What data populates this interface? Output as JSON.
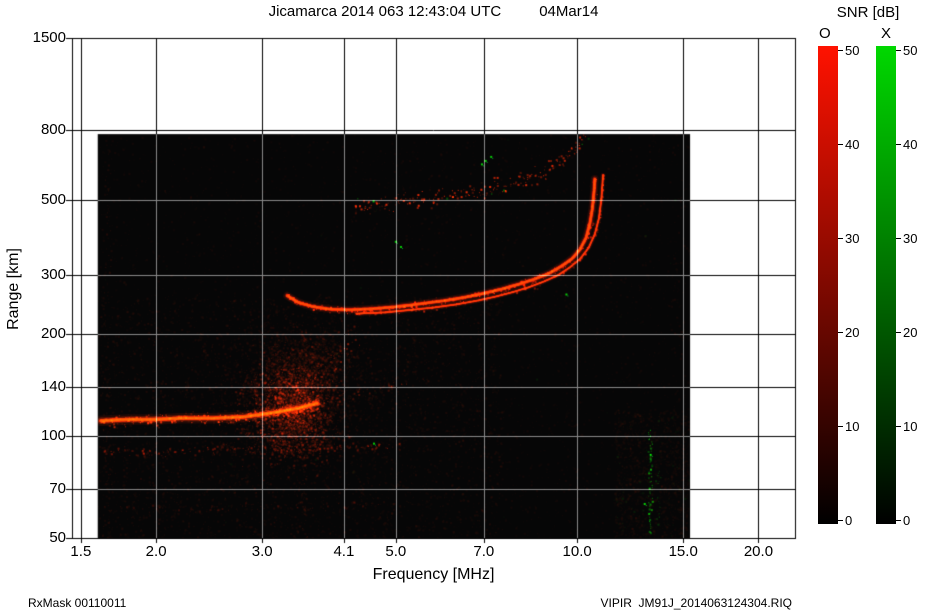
{
  "footer": {
    "left": "RxMask 00110011",
    "right": "VIPIR  JM91J_2014063124304.RIQ"
  },
  "colorbar": {
    "title": "SNR [dB]",
    "min": 0,
    "max": 50,
    "ticks": [
      0,
      10,
      20,
      30,
      40,
      50
    ],
    "bars": [
      {
        "label": "O",
        "top_color": "#ff1200",
        "bottom_color": "#000000"
      },
      {
        "label": "X",
        "top_color": "#00d800",
        "bottom_color": "#000000"
      }
    ]
  },
  "chart_data": {
    "type": "heatmap",
    "title": "Jicamarca 2014 063 12:43:04 UTC",
    "date_label": "04Mar14",
    "xlabel": "Frequency [MHz]",
    "ylabel": "Range [km]",
    "xscale": "log",
    "yscale": "log",
    "xlim": [
      1.45,
      23
    ],
    "ylim": [
      50,
      1500
    ],
    "xticks": [
      "1.5",
      "2.0",
      "3.0",
      "4.1",
      "5.0",
      "7.0",
      "10.0",
      "15.0",
      "20.0"
    ],
    "yticks": [
      "1500",
      "800",
      "500",
      "300",
      "200",
      "140",
      "100",
      "70",
      "50"
    ],
    "grid": true,
    "background": "#060606",
    "grid_color_light": "#000000",
    "grid_color_dark": "#8a8a8a",
    "accent_red": "#ff2000",
    "accent_green": "#00c800",
    "data_region": {
      "fmin": 1.6,
      "fmax": 15.4,
      "rmin": 50,
      "rmax": 780
    },
    "traces": [
      {
        "name": "E-region-echo",
        "style": "line",
        "color": "#ff2a00",
        "width": 3.5,
        "alpha": 0.9,
        "fuzz_x": 3,
        "fuzz_y": 4.5,
        "fuzz_density": 2.0,
        "points": [
          [
            1.62,
            111
          ],
          [
            1.8,
            112
          ],
          [
            2.0,
            112
          ],
          [
            2.2,
            113
          ],
          [
            2.5,
            113
          ],
          [
            2.8,
            114
          ],
          [
            3.0,
            116
          ],
          [
            3.2,
            118
          ],
          [
            3.45,
            121
          ],
          [
            3.7,
            125
          ]
        ]
      },
      {
        "name": "E-region-extension",
        "style": "speckle",
        "color": "#d02000",
        "alpha": 0.4,
        "fuzz_x": 4,
        "fuzz_y": 4,
        "density": 0.8,
        "points": [
          [
            3.7,
            126
          ],
          [
            4.1,
            131
          ],
          [
            4.5,
            137
          ],
          [
            4.9,
            142
          ],
          [
            5.2,
            146
          ]
        ]
      },
      {
        "name": "Es-diffuse-rise",
        "style": "speckle",
        "color": "#e02000",
        "alpha": 0.5,
        "fuzz_x": 7,
        "fuzz_y": 9,
        "density": 1.5,
        "points": [
          [
            3.0,
            112
          ],
          [
            3.3,
            125
          ],
          [
            3.6,
            142
          ],
          [
            3.85,
            158
          ],
          [
            4.05,
            172
          ],
          [
            4.2,
            186
          ],
          [
            4.3,
            196
          ]
        ]
      },
      {
        "name": "low-echo-90km",
        "style": "speckle",
        "color": "#c81800",
        "alpha": 0.5,
        "fuzz_x": 5,
        "fuzz_y": 3.5,
        "density": 1.2,
        "points": [
          [
            1.62,
            90
          ],
          [
            2.0,
            90
          ],
          [
            2.4,
            91
          ],
          [
            2.9,
            92
          ],
          [
            3.4,
            92
          ],
          [
            3.9,
            93
          ],
          [
            4.4,
            93
          ],
          [
            5.0,
            94
          ]
        ]
      },
      {
        "name": "low-echo-60km",
        "style": "speckle",
        "color": "#a01200",
        "alpha": 0.3,
        "fuzz_x": 6,
        "fuzz_y": 3,
        "density": 0.6,
        "points": [
          [
            1.7,
            61
          ],
          [
            2.3,
            61
          ],
          [
            3.0,
            62
          ],
          [
            3.8,
            62
          ],
          [
            4.6,
            63
          ]
        ]
      },
      {
        "name": "F-trace-O",
        "style": "line",
        "color": "#ff2000",
        "width": 2.6,
        "alpha": 0.95,
        "fuzz_x": 2,
        "fuzz_y": 2.5,
        "fuzz_density": 1.0,
        "points": [
          [
            3.3,
            260
          ],
          [
            3.45,
            248
          ],
          [
            3.65,
            241
          ],
          [
            3.9,
            237
          ],
          [
            4.2,
            236
          ],
          [
            4.6,
            238
          ],
          [
            5.0,
            241
          ],
          [
            5.5,
            246
          ],
          [
            6.0,
            251
          ],
          [
            6.5,
            257
          ],
          [
            7.0,
            264
          ],
          [
            7.5,
            272
          ],
          [
            8.0,
            281
          ],
          [
            8.5,
            291
          ],
          [
            9.0,
            303
          ],
          [
            9.4,
            317
          ],
          [
            9.8,
            334
          ],
          [
            10.1,
            355
          ],
          [
            10.35,
            386
          ],
          [
            10.5,
            425
          ],
          [
            10.6,
            470
          ],
          [
            10.67,
            530
          ],
          [
            10.7,
            575
          ]
        ]
      },
      {
        "name": "F-trace-X",
        "style": "line",
        "color": "#e61e00",
        "width": 1.6,
        "alpha": 0.8,
        "fuzz_x": 1.5,
        "fuzz_y": 2,
        "fuzz_density": 0.5,
        "points": [
          [
            4.3,
            230
          ],
          [
            4.8,
            232
          ],
          [
            5.3,
            236
          ],
          [
            5.8,
            240
          ],
          [
            6.3,
            245
          ],
          [
            6.8,
            251
          ],
          [
            7.3,
            258
          ],
          [
            7.8,
            266
          ],
          [
            8.3,
            275
          ],
          [
            8.8,
            286
          ],
          [
            9.3,
            299
          ],
          [
            9.7,
            314
          ],
          [
            10.1,
            333
          ],
          [
            10.45,
            360
          ],
          [
            10.7,
            395
          ],
          [
            10.87,
            440
          ],
          [
            10.97,
            500
          ],
          [
            11.02,
            560
          ],
          [
            11.04,
            590
          ]
        ]
      },
      {
        "name": "second-hop-arc",
        "style": "speckle",
        "color": "#ff2800",
        "alpha": 0.85,
        "fuzz_x": 2.5,
        "fuzz_y": 6,
        "density": 1.6,
        "green_prob": 0.05,
        "points": [
          [
            4.25,
            480
          ],
          [
            4.6,
            484
          ],
          [
            5.0,
            490
          ],
          [
            5.5,
            498
          ],
          [
            6.0,
            507
          ],
          [
            6.5,
            518
          ],
          [
            7.0,
            531
          ],
          [
            7.5,
            547
          ],
          [
            8.0,
            566
          ],
          [
            8.5,
            589
          ],
          [
            9.0,
            616
          ],
          [
            9.4,
            648
          ],
          [
            9.8,
            690
          ],
          [
            10.1,
            730
          ],
          [
            10.3,
            762
          ]
        ]
      }
    ],
    "blobs": [
      {
        "name": "Es-blob-core",
        "f": 3.35,
        "r": 122,
        "sf": 0.05,
        "sr": 0.1,
        "count": 2600,
        "color": "#ff2000",
        "alpha": 0.26
      },
      {
        "name": "Es-blob-halo",
        "f": 3.4,
        "r": 135,
        "sf": 0.09,
        "sr": 0.16,
        "count": 1800,
        "color": "#b81400",
        "alpha": 0.13
      },
      {
        "name": "Es-blob-top",
        "f": 3.6,
        "r": 170,
        "sf": 0.05,
        "sr": 0.07,
        "count": 600,
        "color": "#c01600",
        "alpha": 0.15
      }
    ],
    "vlines": [
      {
        "name": "rfi-left-edge",
        "f": 1.66,
        "r0": 50,
        "r1": 780,
        "color": "#701000",
        "alpha": 0.25,
        "jx": 3,
        "density": 0.5
      },
      {
        "name": "rfi-3.5MHz",
        "f": 3.5,
        "r0": 50,
        "r1": 215,
        "color": "#801200",
        "alpha": 0.3,
        "jx": 4,
        "density": 0.8
      },
      {
        "name": "rfi-12MHz",
        "f": 12.3,
        "r0": 50,
        "r1": 120,
        "color": "#6e0e00",
        "alpha": 0.3,
        "jx": 5,
        "density": 0.6
      },
      {
        "name": "rfi-green-13MHz",
        "f": 13.2,
        "r0": 52,
        "r1": 105,
        "color": "#00c800",
        "alpha": 0.8,
        "jx": 1.5,
        "density": 1.4
      },
      {
        "name": "rfi-green-13.6MHz",
        "f": 13.6,
        "r0": 55,
        "r1": 80,
        "color": "#00a000",
        "alpha": 0.5,
        "jx": 2,
        "density": 0.7
      },
      {
        "name": "rfi-14.6MHz",
        "f": 14.6,
        "r0": 50,
        "r1": 400,
        "color": "#5a0c00",
        "alpha": 0.2,
        "jx": 4,
        "density": 0.4
      }
    ],
    "noise_layers": [
      {
        "count": 5000,
        "fmin": 1.6,
        "fmax": 15.4,
        "rmin": 50,
        "rmax": 780,
        "color": "#8c1400",
        "alpha": 0.1,
        "green_prob": 0.01
      },
      {
        "count": 3500,
        "fmin": 1.6,
        "fmax": 7.5,
        "rmin": 50,
        "rmax": 260,
        "color": "#a01800",
        "alpha": 0.13,
        "green_prob": 0.0
      },
      {
        "count": 1200,
        "fmin": 11.5,
        "fmax": 15.3,
        "rmin": 50,
        "rmax": 120,
        "color": "#7a1000",
        "alpha": 0.12,
        "green_prob": 0.05
      }
    ],
    "green_specks": [
      {
        "f": 5.0,
        "r": 375
      },
      {
        "f": 5.1,
        "r": 362
      },
      {
        "f": 6.95,
        "r": 635
      },
      {
        "f": 7.05,
        "r": 650
      },
      {
        "f": 7.2,
        "r": 668
      },
      {
        "f": 4.6,
        "r": 95
      },
      {
        "f": 9.6,
        "r": 262
      },
      {
        "f": 12.95,
        "r": 63
      },
      {
        "f": 13.25,
        "r": 88
      }
    ]
  }
}
